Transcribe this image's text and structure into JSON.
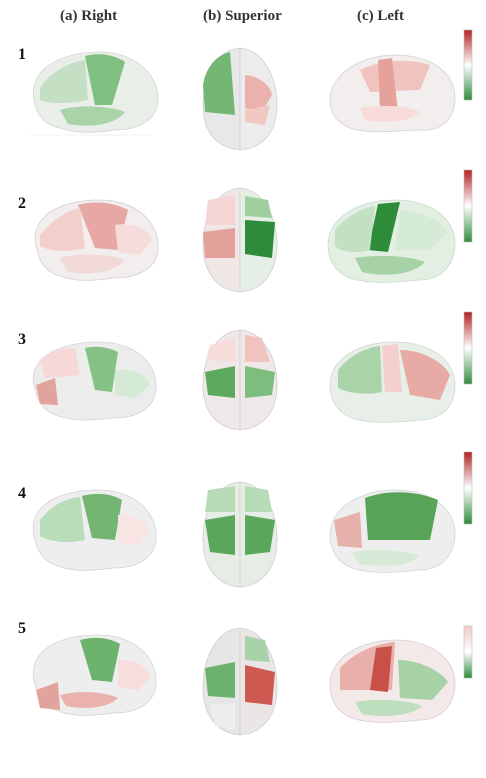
{
  "columns": [
    {
      "label": "(a) Right"
    },
    {
      "label": "(b) Superior"
    },
    {
      "label": "(c) Left"
    }
  ],
  "rows": [
    {
      "label": "1"
    },
    {
      "label": "2"
    },
    {
      "label": "3"
    },
    {
      "label": "4"
    },
    {
      "label": "5"
    }
  ],
  "colors": {
    "positive": "#c0392b",
    "neutral": "#ffffff",
    "negative": "#2e8b3a"
  }
}
